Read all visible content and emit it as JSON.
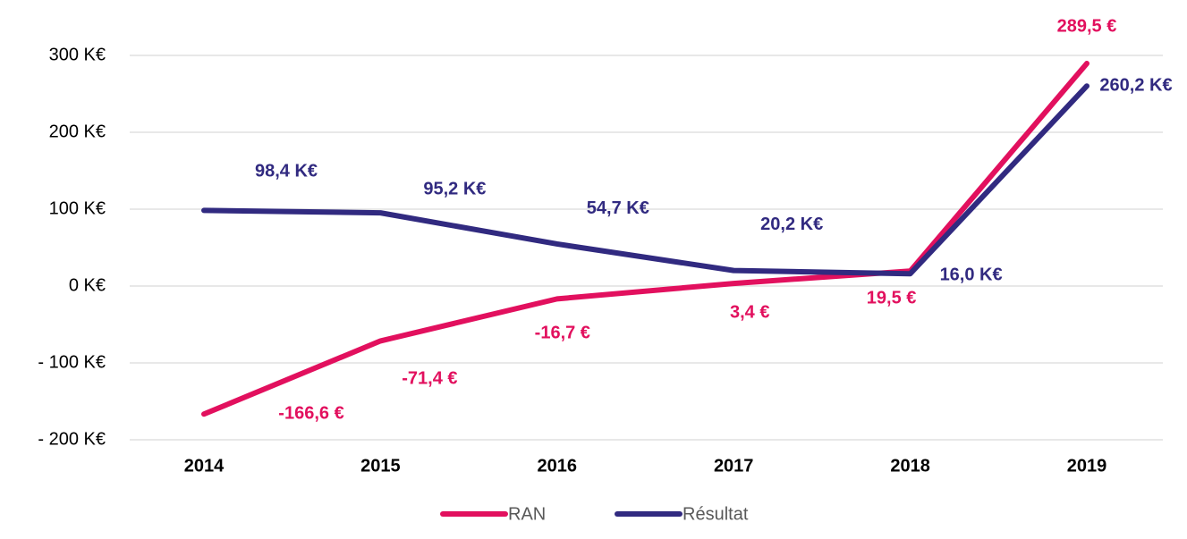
{
  "chart_data": {
    "type": "line",
    "categories": [
      "2014",
      "2015",
      "2016",
      "2017",
      "2018",
      "2019"
    ],
    "series": [
      {
        "name": "RAN",
        "color": "#e2105e",
        "values": [
          -166.6,
          -71.4,
          -16.7,
          3.4,
          19.5,
          289.5
        ],
        "value_labels": [
          "-166,6 €",
          "-71,4 €",
          "-16,7 €",
          "3,4 €",
          "19,5 €",
          "289,5 €"
        ]
      },
      {
        "name": "Résultat",
        "color": "#312a80",
        "values": [
          98.4,
          95.2,
          54.7,
          20.2,
          16.0,
          260.2
        ],
        "value_labels": [
          "98,4 K€",
          "95,2 K€",
          "54,7 K€",
          "20,2 K€",
          "16,0 K€",
          "260,2 K€"
        ]
      }
    ],
    "ylim": [
      -200,
      300
    ],
    "yticks": [
      {
        "value": -200,
        "label": "- 200 K€"
      },
      {
        "value": -100,
        "label": "- 100 K€"
      },
      {
        "value": 0,
        "label": "0 K€"
      },
      {
        "value": 100,
        "label": "100 K€"
      },
      {
        "value": 200,
        "label": "200 K€"
      },
      {
        "value": 300,
        "label": "300 K€"
      }
    ],
    "grid": true,
    "legend": "bottom"
  }
}
